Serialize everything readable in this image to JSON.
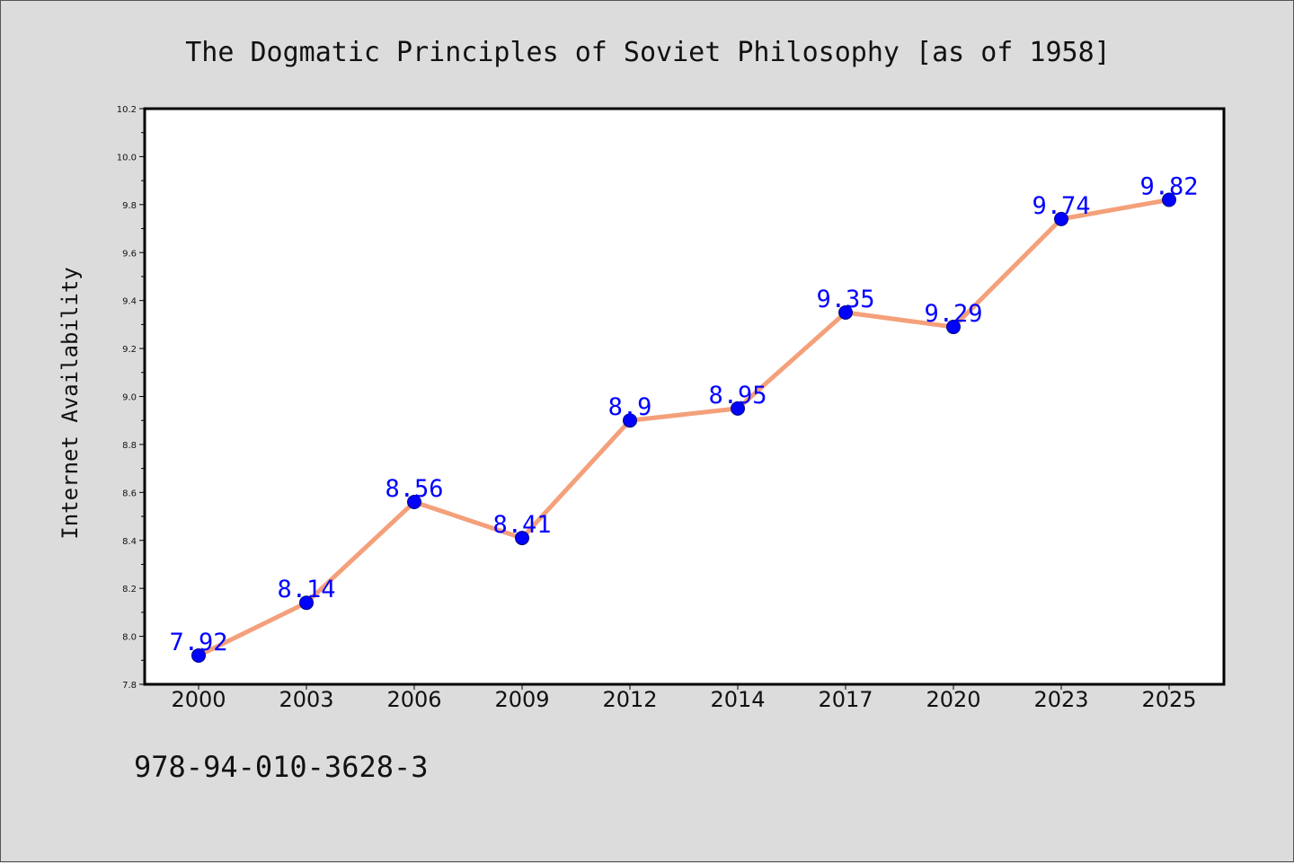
{
  "isbn": "978-94-010-3628-3",
  "colors": {
    "background": "#dcdcdc",
    "plot_background": "#ffffff",
    "line": "#f4a07a",
    "marker": "#0000ff",
    "data_label": "#0000ff"
  },
  "chart_data": {
    "type": "line",
    "title": "The Dogmatic Principles of Soviet Philosophy [as of 1958]",
    "xlabel": "",
    "ylabel": "Internet Availability",
    "categories": [
      "2000",
      "2003",
      "2006",
      "2009",
      "2012",
      "2014",
      "2017",
      "2020",
      "2023",
      "2025"
    ],
    "series": [
      {
        "values": [
          7.92,
          8.14,
          8.56,
          8.41,
          8.9,
          8.95,
          9.35,
          9.29,
          9.74,
          9.82
        ],
        "labels": [
          "7.92",
          "8.14",
          "8.56",
          "8.41",
          "8.9",
          "8.95",
          "9.35",
          "9.29",
          "9.74",
          "9.82"
        ]
      }
    ],
    "ylim": [
      7.8,
      10.2
    ],
    "yticks": [
      "7.8",
      "8.0",
      "8.2",
      "8.4",
      "8.6",
      "8.8",
      "9.0",
      "9.2",
      "9.4",
      "9.6",
      "9.8",
      "10.0",
      "10.2"
    ],
    "grid": false,
    "legend": "none"
  }
}
